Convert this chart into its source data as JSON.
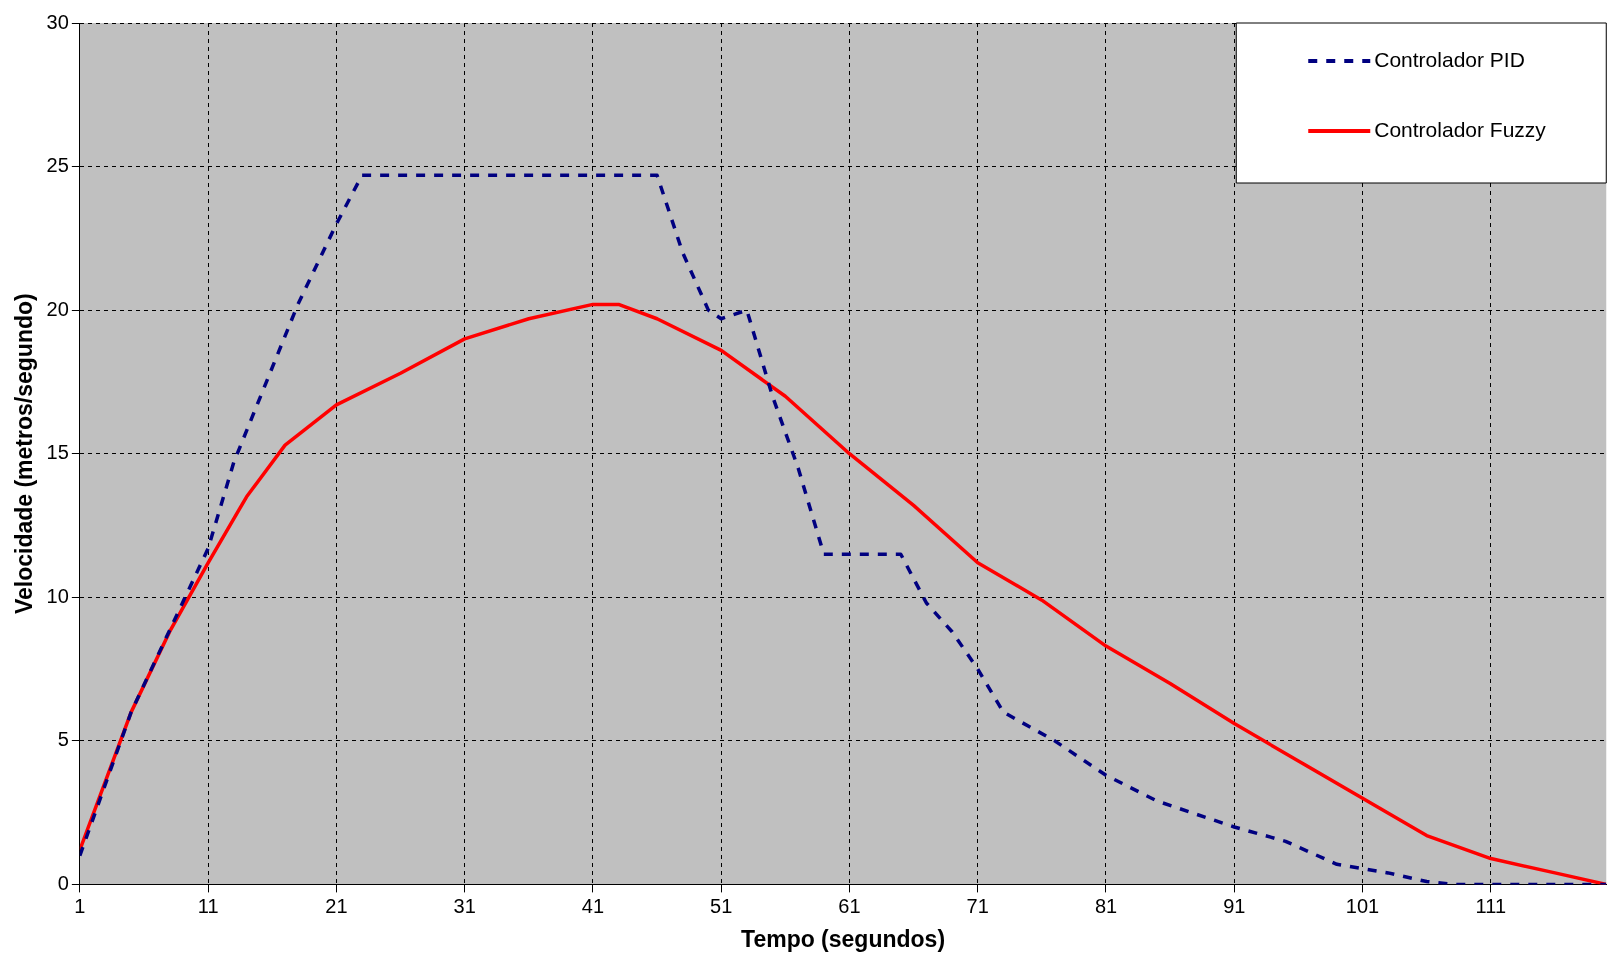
{
  "chart_data": {
    "type": "line",
    "xlabel": "Tempo (segundos)",
    "ylabel": "Velocidade (metros/segundo)",
    "xlim": [
      1,
      120
    ],
    "xticks": [
      1,
      11,
      21,
      31,
      41,
      51,
      61,
      71,
      81,
      91,
      101,
      111
    ],
    "ylim": [
      0,
      30
    ],
    "yticks": [
      0,
      5,
      10,
      15,
      20,
      25,
      30
    ],
    "grid": true,
    "legend": "top right",
    "marker": "none",
    "series": [
      {
        "name": "Controlador PID",
        "color": "#000080",
        "line_style": "dashed",
        "x": [
          1,
          5,
          11,
          13,
          18,
          21,
          23,
          46,
          48,
          50,
          51,
          53,
          55,
          57,
          59,
          65,
          67,
          69,
          71,
          73,
          77,
          81,
          85,
          89,
          91,
          95,
          99,
          103,
          106,
          108,
          120
        ],
        "values": [
          1,
          6,
          11.7,
          14.7,
          20.2,
          23,
          24.7,
          24.7,
          22,
          20,
          19.7,
          20,
          17,
          14.5,
          11.5,
          11.5,
          9.8,
          8.8,
          7.5,
          6,
          5,
          3.8,
          2.9,
          2.3,
          2,
          1.5,
          0.7,
          0.4,
          0.1,
          0,
          0
        ]
      },
      {
        "name": "Controlador Fuzzy",
        "color": "#ff0000",
        "line_style": "solid",
        "x": [
          1,
          5,
          8,
          11,
          14,
          17,
          21,
          26,
          31,
          36,
          41,
          43,
          46,
          51,
          56,
          61,
          66,
          71,
          76,
          81,
          86,
          91,
          96,
          101,
          106,
          111,
          116,
          120
        ],
        "values": [
          1.2,
          6,
          8.8,
          11.2,
          13.5,
          15.3,
          16.7,
          17.8,
          19,
          19.7,
          20.2,
          20.2,
          19.7,
          18.6,
          17,
          15,
          13.2,
          11.2,
          9.9,
          8.3,
          7,
          5.6,
          4.3,
          3,
          1.7,
          0.9,
          0.4,
          0
        ]
      }
    ]
  }
}
